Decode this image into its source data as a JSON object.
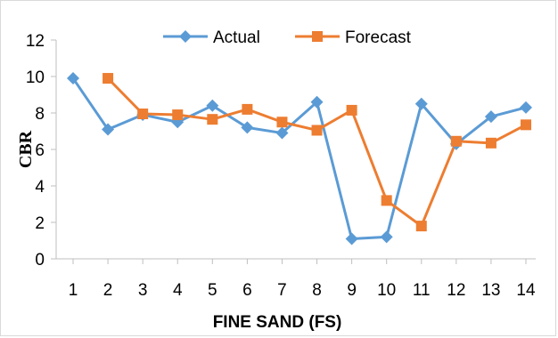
{
  "chart_data": {
    "type": "line",
    "title": "",
    "xlabel": "FINE SAND (FS)",
    "ylabel": "CBR",
    "x": [
      1,
      2,
      3,
      4,
      5,
      6,
      7,
      8,
      9,
      10,
      11,
      12,
      13,
      14
    ],
    "xlim": [
      1,
      14
    ],
    "ylim": [
      0,
      12
    ],
    "yticks": [
      0,
      2,
      4,
      6,
      8,
      10,
      12
    ],
    "grid": false,
    "legend_position": "top",
    "series": [
      {
        "name": "Actual",
        "marker": "diamond",
        "color": "#5b9bd5",
        "x": [
          1,
          2,
          3,
          4,
          5,
          6,
          7,
          8,
          9,
          10,
          11,
          12,
          13,
          14
        ],
        "values": [
          9.9,
          7.1,
          7.9,
          7.5,
          8.4,
          7.2,
          6.9,
          8.6,
          1.1,
          1.2,
          8.5,
          6.3,
          7.8,
          8.3
        ]
      },
      {
        "name": "Forecast",
        "marker": "square",
        "color": "#ed7d31",
        "x": [
          2,
          3,
          4,
          5,
          6,
          7,
          8,
          9,
          10,
          11,
          12,
          13,
          14
        ],
        "values": [
          9.9,
          7.95,
          7.9,
          7.65,
          8.2,
          7.5,
          7.05,
          8.15,
          3.2,
          1.8,
          6.45,
          6.35,
          7.35
        ]
      }
    ]
  }
}
